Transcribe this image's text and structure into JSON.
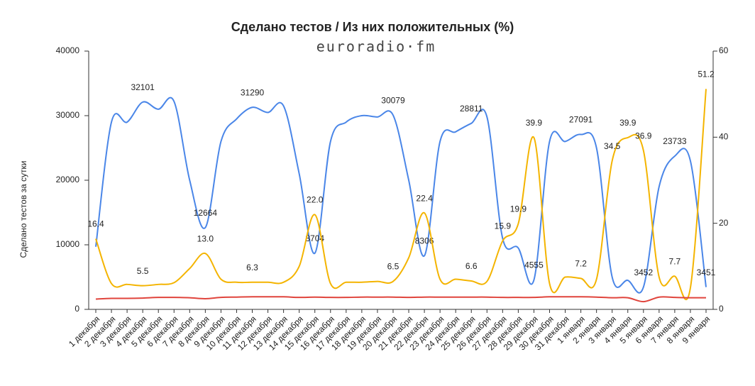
{
  "chart_data": {
    "type": "line",
    "title": "Сделано тестов / Из них положительных (%)",
    "logo": "euroradio·fm",
    "y_label": "Сделано тестов за сутки",
    "categories": [
      "1 декабря",
      "2 декабря",
      "3 декабря",
      "4 декабря",
      "5 декабря",
      "6 декабря",
      "7 декабря",
      "8 декабря",
      "9 декабря",
      "10 декабря",
      "11 декабря",
      "12 декабря",
      "13 декабря",
      "14 декабря",
      "15 декабря",
      "16 декабря",
      "17 декабря",
      "18 декабря",
      "19 декабря",
      "20 декабря",
      "21 декабря",
      "22 декабря",
      "23 декабря",
      "24 декабря",
      "25 декабря",
      "26 декабря",
      "27 декабря",
      "28 декабря",
      "29 декабря",
      "30 декабря",
      "31 декабря",
      "1 января",
      "2 января",
      "3 января",
      "4 января",
      "5 января",
      "6 января",
      "7 января",
      "8 января",
      "9 января"
    ],
    "ylim": [
      0,
      40000
    ],
    "yticks": [
      0,
      10000,
      20000,
      30000,
      40000
    ],
    "y2lim": [
      0,
      60
    ],
    "y2ticks": [
      0,
      20,
      40,
      60
    ],
    "series": [
      {
        "color": "#4a86e8",
        "values": [
          9700,
          29000,
          29000,
          32101,
          31000,
          32200,
          20000,
          12664,
          26000,
          29500,
          31290,
          30500,
          31500,
          21000,
          8704,
          26000,
          29000,
          30000,
          29800,
          30079,
          20000,
          8306,
          26000,
          27500,
          28811,
          29800,
          11000,
          9500,
          4555,
          26000,
          26000,
          27091,
          25000,
          5000,
          4500,
          3452,
          19000,
          23733,
          23000,
          3451
        ],
        "value_labels": [
          null,
          null,
          null,
          "32101",
          null,
          null,
          null,
          "12664",
          null,
          null,
          "31290",
          null,
          null,
          null,
          "8704",
          null,
          null,
          null,
          null,
          "30079",
          null,
          "8306",
          null,
          null,
          "28811",
          null,
          null,
          null,
          "4555",
          null,
          null,
          "27091",
          null,
          null,
          null,
          "3452",
          null,
          "23733",
          null,
          "3451"
        ]
      },
      {
        "color": "#f4b400",
        "axis": "y2",
        "values": [
          16.4,
          6,
          5.8,
          5.5,
          5.8,
          6.2,
          9.5,
          13.0,
          7.0,
          6.3,
          6.3,
          6.3,
          6.3,
          10,
          22.0,
          6,
          6.3,
          6.3,
          6.5,
          6.5,
          12,
          22.4,
          7,
          7,
          6.6,
          6.5,
          15.9,
          19.9,
          39.9,
          6,
          7.5,
          7.2,
          7,
          34.5,
          39.9,
          36.9,
          7.5,
          7.7,
          5,
          51.2
        ],
        "value_labels": [
          "16.4",
          null,
          null,
          "5.5",
          null,
          null,
          null,
          "13.0",
          null,
          null,
          "6.3",
          null,
          null,
          null,
          "22.0",
          null,
          null,
          null,
          null,
          "6.5",
          null,
          "22.4",
          null,
          null,
          "6.6",
          null,
          "15.9",
          "19.9",
          "39.9",
          null,
          null,
          "7.2",
          null,
          "34.5",
          "39.9",
          "36.9",
          null,
          "7.7",
          null,
          "51.2"
        ]
      },
      {
        "color": "#e0443c",
        "values": [
          1600,
          1700,
          1700,
          1750,
          1850,
          1850,
          1800,
          1650,
          1850,
          1900,
          1950,
          1950,
          1950,
          1850,
          1900,
          1850,
          1850,
          1900,
          1900,
          1900,
          1850,
          1900,
          1900,
          1900,
          1900,
          1900,
          1850,
          1850,
          1850,
          1950,
          1950,
          1950,
          1900,
          1800,
          1800,
          1200,
          1900,
          1850,
          1800,
          1800
        ]
      }
    ]
  }
}
